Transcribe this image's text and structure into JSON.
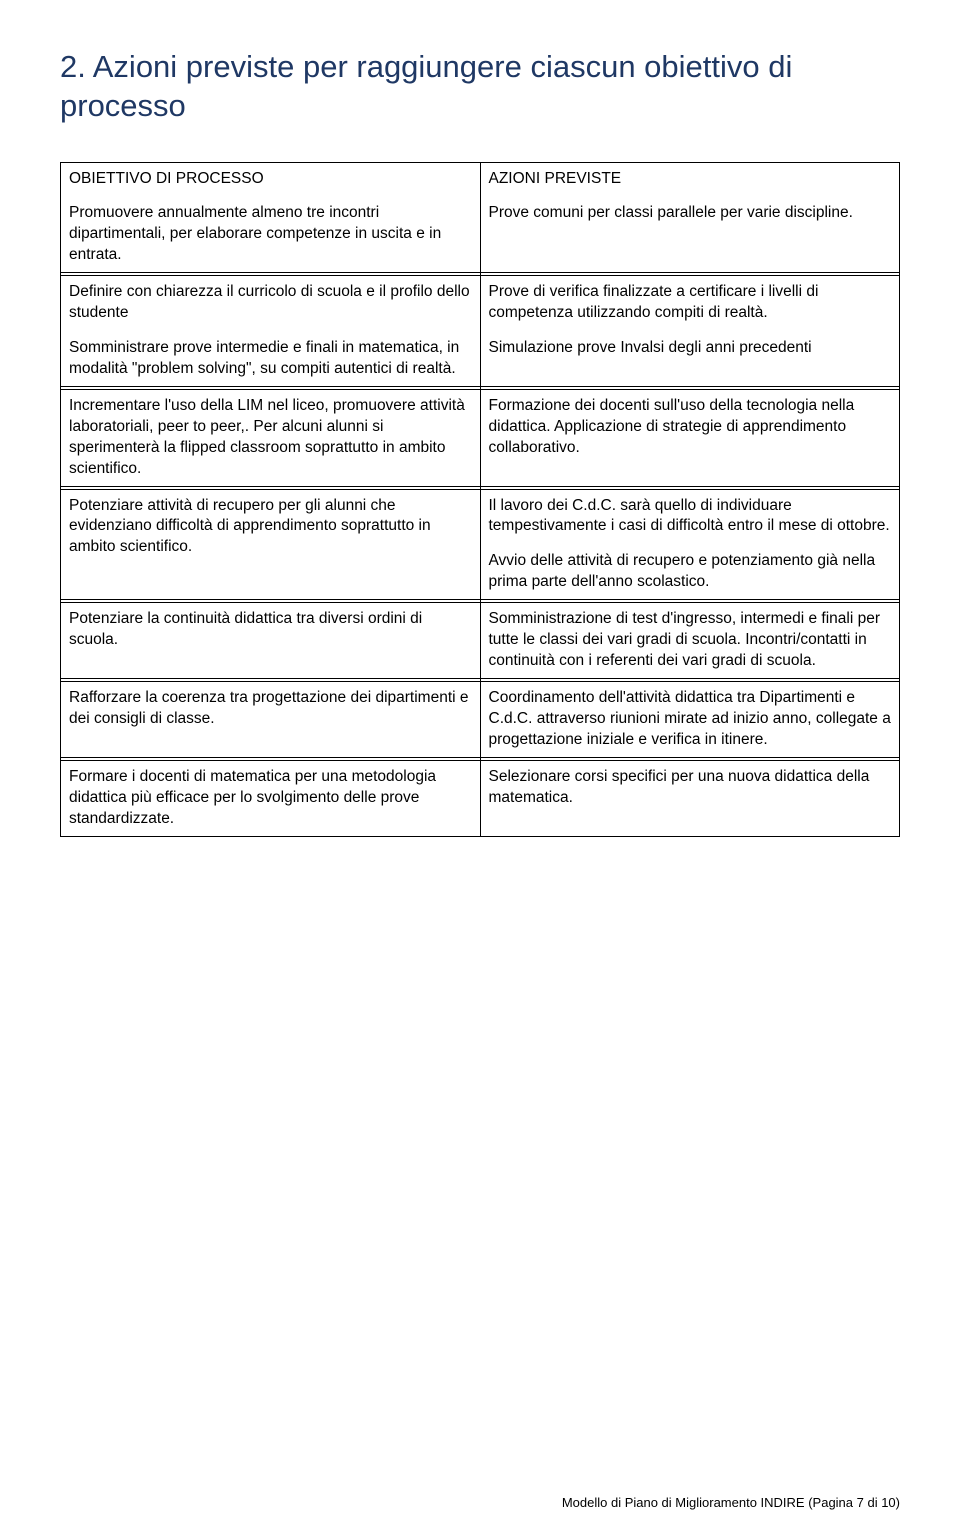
{
  "title": "2. Azioni previste per raggiungere ciascun obiettivo di processo",
  "headers": {
    "left": "OBIETTIVO DI PROCESSO",
    "right": "AZIONI PREVISTE"
  },
  "rows": [
    {
      "left": [
        "Promuovere annualmente almeno tre incontri dipartimentali, per elaborare competenze in uscita e in entrata."
      ],
      "right": [
        "Prove comuni per classi parallele per varie discipline."
      ]
    },
    {
      "left": [
        "Definire con chiarezza il curricolo di scuola e il profilo dello studente",
        "Somministrare prove intermedie e finali in matematica, in modalità \"problem solving\", su compiti autentici di realtà."
      ],
      "right": [
        "Prove di verifica finalizzate a certificare i livelli di competenza utilizzando compiti di realtà.",
        "Simulazione prove Invalsi degli anni precedenti"
      ]
    },
    {
      "left": [
        "Incrementare l'uso della LIM nel liceo, promuovere attività laboratoriali, peer to peer,. Per alcuni alunni si sperimenterà la flipped classroom soprattutto in ambito scientifico."
      ],
      "right": [
        "Formazione dei docenti sull'uso della tecnologia nella didattica. Applicazione di strategie di apprendimento collaborativo."
      ]
    },
    {
      "left": [
        "Potenziare attività di recupero per gli alunni che evidenziano difficoltà di apprendimento soprattutto in ambito scientifico."
      ],
      "right": [
        "Il lavoro dei C.d.C. sarà quello di individuare tempestivamente i casi di difficoltà entro il mese di ottobre.",
        "Avvio delle attività di recupero e potenziamento già nella prima parte dell'anno scolastico."
      ]
    },
    {
      "left": [
        "Potenziare la continuità didattica tra diversi ordini di scuola."
      ],
      "right": [
        "Somministrazione di test d'ingresso, intermedi e finali per tutte le classi dei vari gradi di scuola. Incontri/contatti in continuità con i referenti dei vari gradi di scuola."
      ]
    },
    {
      "left": [
        "Rafforzare la coerenza tra progettazione dei dipartimenti e dei consigli di classe."
      ],
      "right": [
        "Coordinamento dell'attività didattica tra Dipartimenti e  C.d.C. attraverso riunioni mirate ad inizio anno, collegate a progettazione iniziale e verifica in itinere."
      ]
    },
    {
      "left": [
        "Formare i docenti di matematica per una metodologia didattica più efficace per lo svolgimento delle prove standardizzate."
      ],
      "right": [
        "Selezionare corsi specifici per una nuova didattica della matematica."
      ]
    }
  ],
  "footer": "Modello di Piano di Miglioramento INDIRE (Pagina 7 di 10)"
}
